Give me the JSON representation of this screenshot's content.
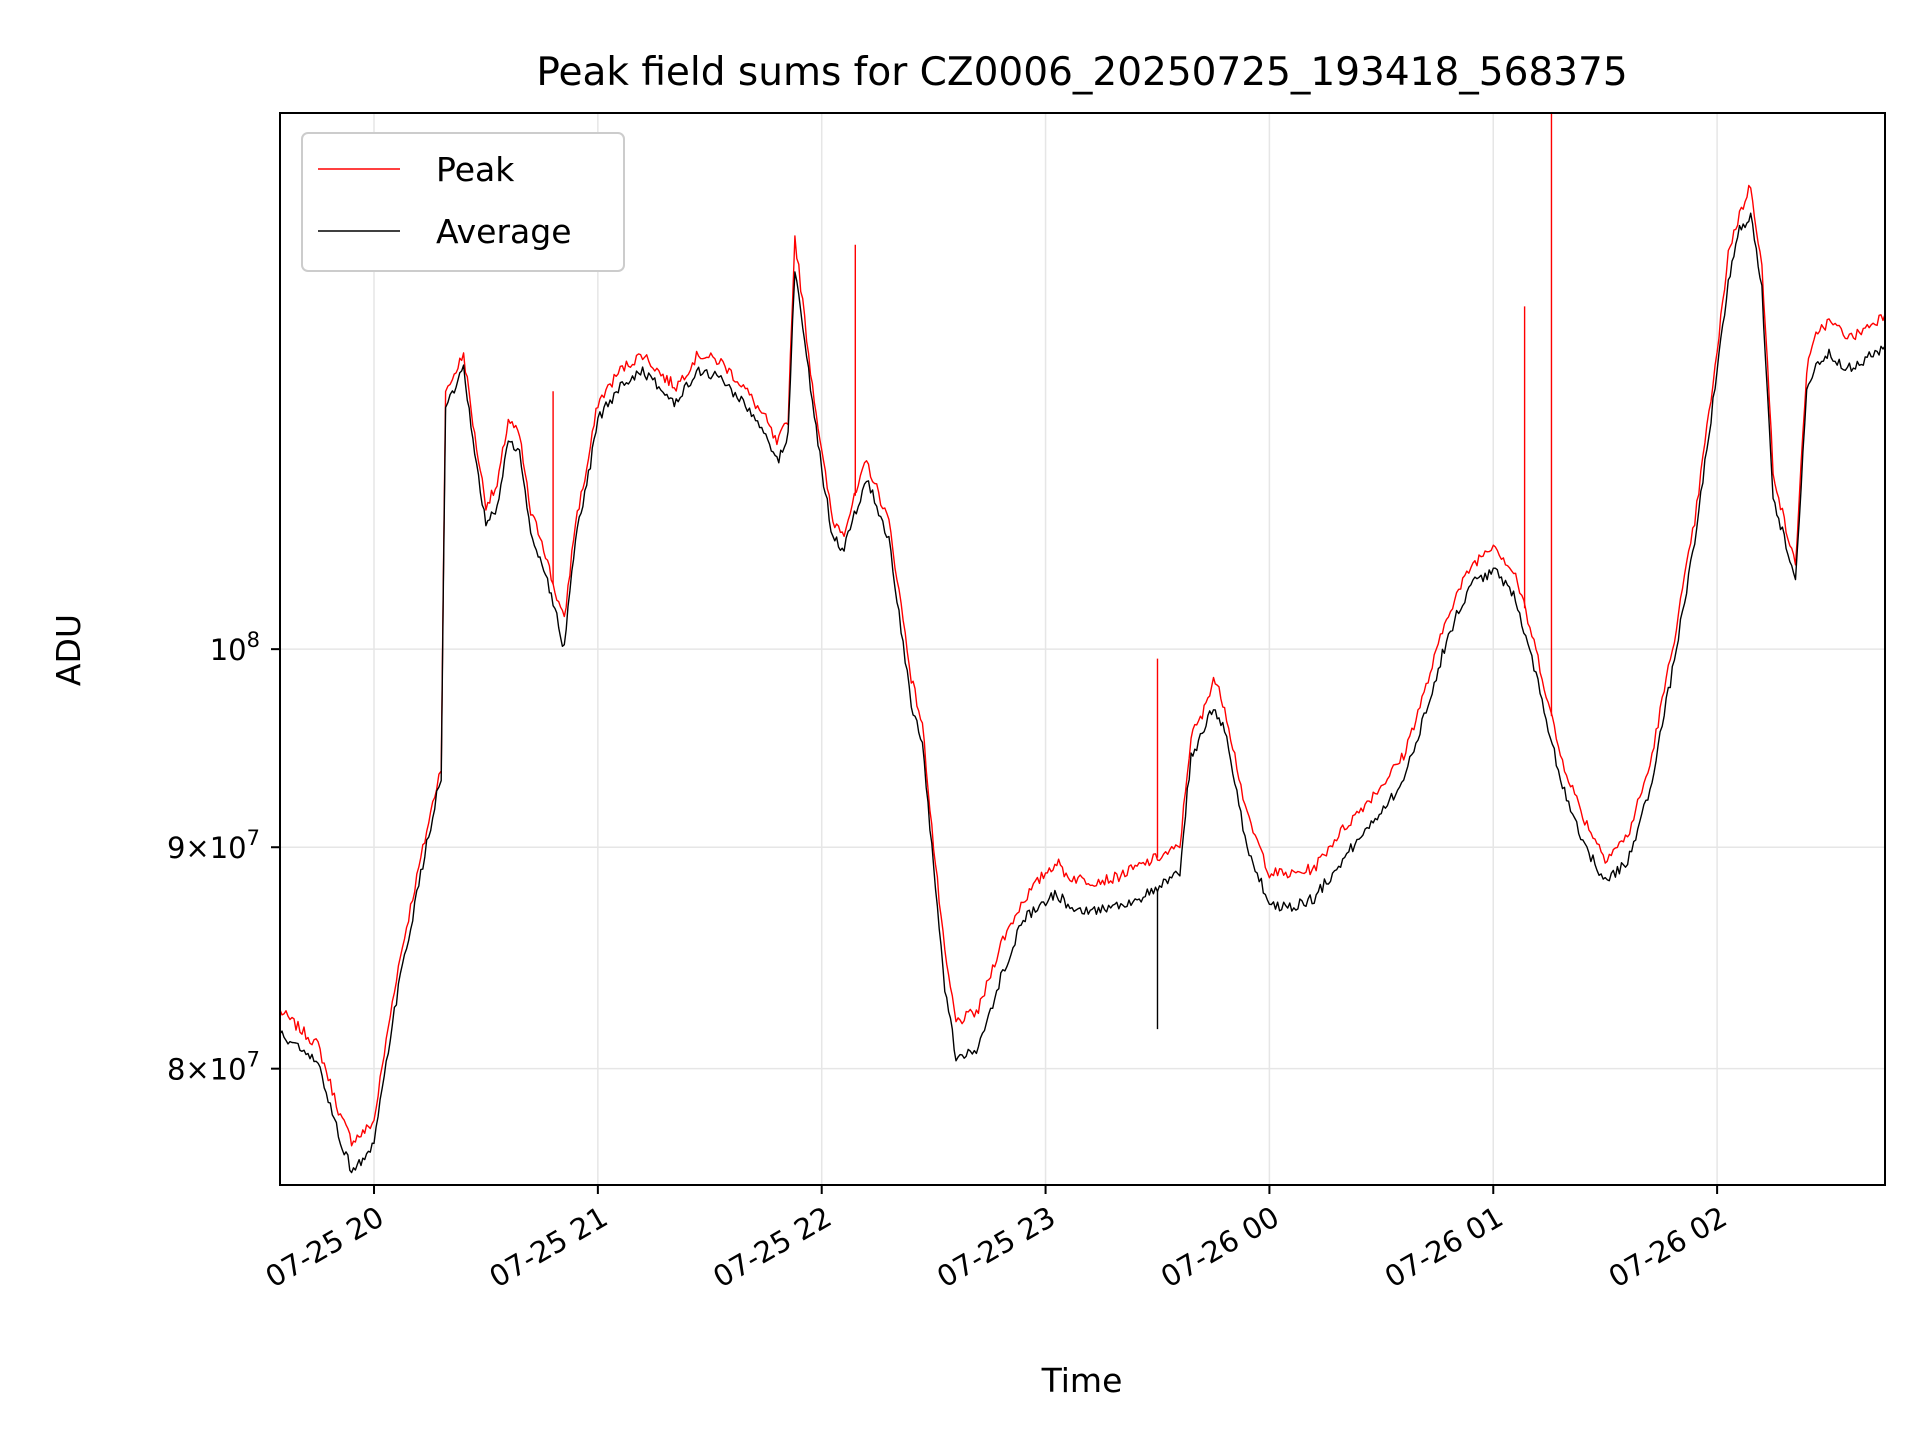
{
  "chart_data": {
    "type": "line",
    "title": "Peak field sums for CZ0006_20250725_193418_568375",
    "xlabel": "Time",
    "ylabel": "ADU",
    "x_axis": {
      "kind": "time",
      "range_hours": [
        19.58,
        26.75
      ],
      "ticks": [
        {
          "hour": 20,
          "label": "07-25 20"
        },
        {
          "hour": 21,
          "label": "07-25 21"
        },
        {
          "hour": 22,
          "label": "07-25 22"
        },
        {
          "hour": 23,
          "label": "07-25 23"
        },
        {
          "hour": 24,
          "label": "07-26 00"
        },
        {
          "hour": 25,
          "label": "07-26 01"
        },
        {
          "hour": 26,
          "label": "07-26 02"
        }
      ]
    },
    "y_axis": {
      "scale": "log",
      "ylim": [
        75200000,
        133000000
      ],
      "ticks": [
        {
          "value": 80000000,
          "mantissa": "8",
          "times": "×",
          "base": "10",
          "exponent": "7"
        },
        {
          "value": 90000000,
          "mantissa": "9",
          "times": "×",
          "base": "10",
          "exponent": "7"
        },
        {
          "value": 100000000,
          "mantissa": "",
          "times": "",
          "base": "10",
          "exponent": "8"
        }
      ]
    },
    "grid": true,
    "legend": {
      "placement": "top-left",
      "entries": [
        "Peak",
        "Average"
      ]
    },
    "series": [
      {
        "name": "Peak",
        "color": "#ff0000",
        "x": [
          19.58,
          19.75,
          19.85,
          19.9,
          19.95,
          20.0,
          20.1,
          20.2,
          20.28,
          20.3,
          20.32,
          20.35,
          20.4,
          20.45,
          20.5,
          20.55,
          20.6,
          20.65,
          20.7,
          20.75,
          20.8,
          20.85,
          20.9,
          20.95,
          21.0,
          21.1,
          21.2,
          21.3,
          21.35,
          21.45,
          21.55,
          21.65,
          21.75,
          21.8,
          21.85,
          21.88,
          21.95,
          22.0,
          22.05,
          22.1,
          22.2,
          22.3,
          22.4,
          22.45,
          22.5,
          22.55,
          22.6,
          22.7,
          22.8,
          22.9,
          23.0,
          23.05,
          23.1,
          23.2,
          23.3,
          23.4,
          23.5,
          23.6,
          23.65,
          23.7,
          23.75,
          23.8,
          23.9,
          24.0,
          24.1,
          24.2,
          24.3,
          24.5,
          24.6,
          24.7,
          24.8,
          24.9,
          25.0,
          25.1,
          25.2,
          25.3,
          25.4,
          25.5,
          25.6,
          25.7,
          25.8,
          25.9,
          26.0,
          26.05,
          26.1,
          26.15,
          26.2,
          26.25,
          26.3,
          26.35,
          26.4,
          26.45,
          26.5,
          26.6,
          26.75
        ],
        "y": [
          82500000,
          81000000,
          78000000,
          77000000,
          77300000,
          77800000,
          84000000,
          89000000,
          93000000,
          94000000,
          114500000,
          115500000,
          117000000,
          112000000,
          108000000,
          109000000,
          113000000,
          112000000,
          107500000,
          106000000,
          103500000,
          101500000,
          107000000,
          110000000,
          114000000,
          116000000,
          117000000,
          115500000,
          115000000,
          117000000,
          116500000,
          115000000,
          113000000,
          111500000,
          113000000,
          124500000,
          116000000,
          111000000,
          107000000,
          106500000,
          110500000,
          107000000,
          98500000,
          96000000,
          90000000,
          85000000,
          82000000,
          82500000,
          85500000,
          87500000,
          88800000,
          89300000,
          88600000,
          88400000,
          88500000,
          89000000,
          89500000,
          90000000,
          95500000,
          96500000,
          98500000,
          97000000,
          91500000,
          88800000,
          88700000,
          89000000,
          90500000,
          93000000,
          94500000,
          98000000,
          102000000,
          104500000,
          105800000,
          104000000,
          99500000,
          94500000,
          91500000,
          89500000,
          90500000,
          94000000,
          100000000,
          107000000,
          117000000,
          123500000,
          126000000,
          128000000,
          122500000,
          110000000,
          107000000,
          104500000,
          116000000,
          118500000,
          119000000,
          118000000,
          119500000
        ]
      },
      {
        "name": "Average",
        "color": "#000000",
        "x": [
          19.58,
          19.75,
          19.85,
          19.9,
          19.95,
          20.0,
          20.1,
          20.2,
          20.28,
          20.3,
          20.32,
          20.35,
          20.4,
          20.45,
          20.5,
          20.55,
          20.6,
          20.65,
          20.7,
          20.75,
          20.8,
          20.85,
          20.9,
          20.95,
          21.0,
          21.1,
          21.2,
          21.3,
          21.35,
          21.45,
          21.55,
          21.65,
          21.75,
          21.8,
          21.85,
          21.88,
          21.95,
          22.0,
          22.05,
          22.1,
          22.2,
          22.3,
          22.4,
          22.45,
          22.5,
          22.55,
          22.6,
          22.7,
          22.8,
          22.9,
          23.0,
          23.05,
          23.1,
          23.2,
          23.3,
          23.4,
          23.5,
          23.6,
          23.65,
          23.7,
          23.75,
          23.8,
          23.9,
          24.0,
          24.1,
          24.2,
          24.3,
          24.5,
          24.6,
          24.7,
          24.8,
          24.9,
          25.0,
          25.1,
          25.2,
          25.3,
          25.4,
          25.5,
          25.6,
          25.7,
          25.8,
          25.9,
          26.0,
          26.05,
          26.1,
          26.15,
          26.2,
          26.25,
          26.3,
          26.35,
          26.4,
          26.45,
          26.5,
          26.6,
          26.75
        ],
        "y": [
          81500000,
          80200000,
          77000000,
          75800000,
          76200000,
          76800000,
          83000000,
          88200000,
          92500000,
          93300000,
          113800000,
          114500000,
          116000000,
          110800000,
          106800000,
          107800000,
          111800000,
          111000000,
          106300000,
          104800000,
          102500000,
          100000000,
          106000000,
          109000000,
          113000000,
          115000000,
          116000000,
          114500000,
          114000000,
          116000000,
          115500000,
          114000000,
          112000000,
          110500000,
          112000000,
          122500000,
          115000000,
          110000000,
          106000000,
          105500000,
          109500000,
          106000000,
          97000000,
          95000000,
          89000000,
          83500000,
          80500000,
          80800000,
          84000000,
          86600000,
          87500000,
          87800000,
          87300000,
          87000000,
          87200000,
          87500000,
          88000000,
          88800000,
          94500000,
          95500000,
          97000000,
          95800000,
          90000000,
          87300000,
          87200000,
          87600000,
          89000000,
          91800000,
          93200000,
          96800000,
          100800000,
          103500000,
          104300000,
          102800000,
          98200000,
          93300000,
          90300000,
          88300000,
          89300000,
          92800000,
          98800000,
          105800000,
          115800000,
          121500000,
          125000000,
          126000000,
          121000000,
          108500000,
          106000000,
          103500000,
          114800000,
          116500000,
          117000000,
          116000000,
          117500000
        ]
      }
    ],
    "spikes": [
      {
        "series": "Peak",
        "x": 20.8,
        "y": 114700000
      },
      {
        "series": "Peak",
        "x": 22.15,
        "y": 124000000
      },
      {
        "series": "Peak",
        "x": 23.5,
        "y": 99500000
      },
      {
        "series": "Average",
        "x": 23.5,
        "y": 81700000
      },
      {
        "series": "Peak",
        "x": 25.14,
        "y": 120000000
      },
      {
        "series": "Peak",
        "x": 25.26,
        "y": 133000000
      }
    ]
  }
}
